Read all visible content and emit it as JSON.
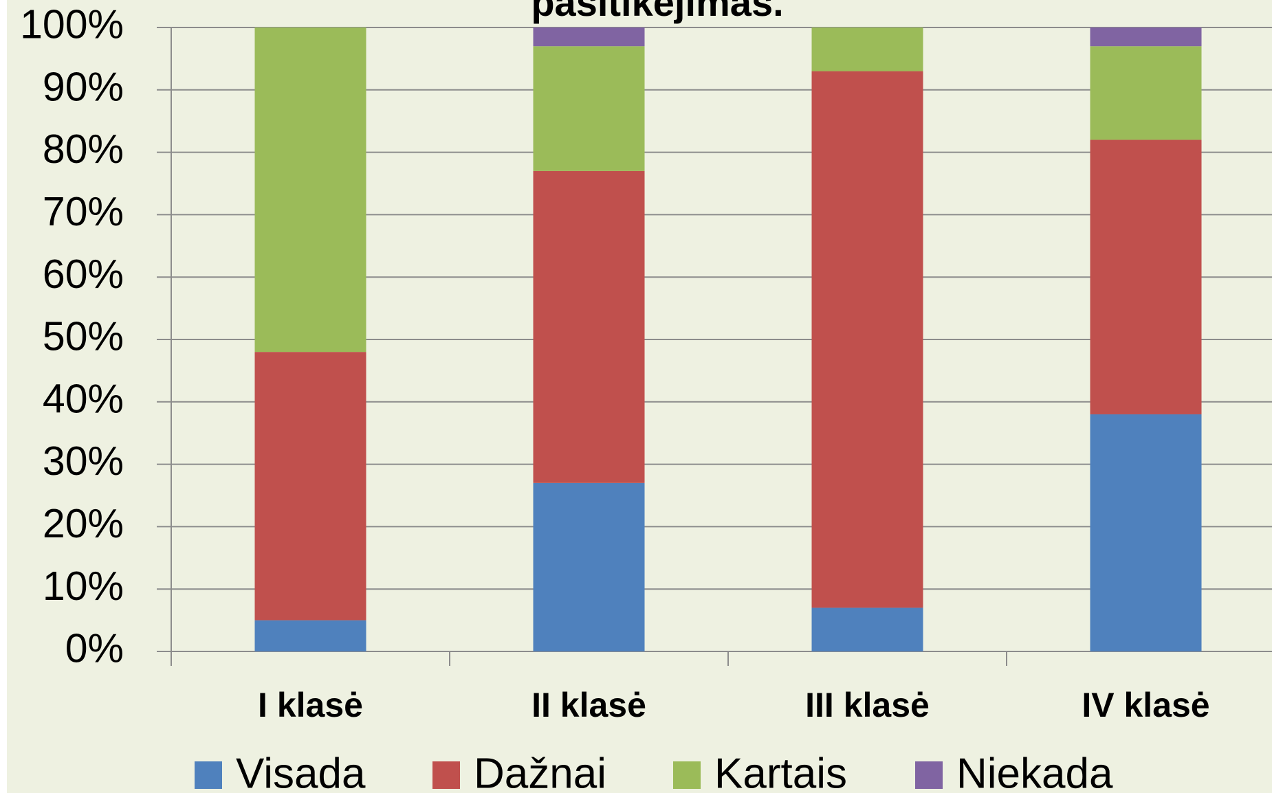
{
  "chart_data": {
    "type": "stacked_bar",
    "title": "pasitikėjimas.",
    "categories": [
      "I klasė",
      "II klasė",
      "III klasė",
      "IV klasė"
    ],
    "series": [
      {
        "name": "Visada",
        "color": "#4f81bd",
        "values": [
          5,
          27,
          7,
          38
        ]
      },
      {
        "name": "Dažnai",
        "color": "#c0504d",
        "values": [
          43,
          50,
          86,
          44
        ]
      },
      {
        "name": "Kartais",
        "color": "#9bbb59",
        "values": [
          52,
          20,
          7,
          15
        ]
      },
      {
        "name": "Niekada",
        "color": "#8064a2",
        "values": [
          0,
          3,
          0,
          3
        ]
      }
    ],
    "ylim": [
      0,
      100
    ],
    "yticks": [
      {
        "value": 0,
        "label": "0%"
      },
      {
        "value": 10,
        "label": "10%"
      },
      {
        "value": 20,
        "label": "20%"
      },
      {
        "value": 30,
        "label": "30%"
      },
      {
        "value": 40,
        "label": "40%"
      },
      {
        "value": 50,
        "label": "50%"
      },
      {
        "value": 60,
        "label": "60%"
      },
      {
        "value": 70,
        "label": "70%"
      },
      {
        "value": 80,
        "label": "80%"
      },
      {
        "value": 90,
        "label": "90%"
      },
      {
        "value": 100,
        "label": "100%"
      }
    ],
    "grid": true,
    "legend": "bottom"
  }
}
